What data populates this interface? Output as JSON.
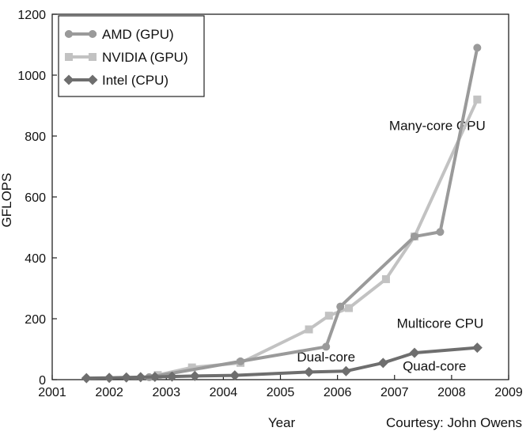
{
  "chart_data": {
    "type": "line",
    "xlabel": "Year",
    "ylabel": "GFLOPS",
    "xlim": [
      2001,
      2009
    ],
    "ylim": [
      0,
      1200
    ],
    "xticks": [
      "2001",
      "2002",
      "2003",
      "2004",
      "2005",
      "2006",
      "2007",
      "2008",
      "2009"
    ],
    "yticks": [
      "0",
      "200",
      "400",
      "600",
      "800",
      "1000",
      "1200"
    ],
    "grid": false,
    "legend_position": "top-left",
    "credit": "Courtesy: John Owens",
    "annotations": [
      {
        "text": "Many-core GPU",
        "x": 2007.75,
        "y": 820
      },
      {
        "text": "Multicore CPU",
        "x": 2007.8,
        "y": 170
      },
      {
        "text": "Dual-core",
        "x": 2005.8,
        "y": 60
      },
      {
        "text": "Quad-core",
        "x": 2007.7,
        "y": 30
      }
    ],
    "series": [
      {
        "name": "AMD (GPU)",
        "color": "#9a9a9a",
        "marker": "circle",
        "x": [
          2002.7,
          2004.3,
          2005.8,
          2006.05,
          2007.35,
          2007.8,
          2008.45
        ],
        "y": [
          8,
          60,
          108,
          240,
          470,
          485,
          1090
        ]
      },
      {
        "name": "NVIDIA (GPU)",
        "color": "#c2c2c2",
        "marker": "square",
        "x": [
          2002.85,
          2003.45,
          2004.3,
          2005.5,
          2005.85,
          2006.2,
          2006.85,
          2007.35,
          2008.45
        ],
        "y": [
          15,
          40,
          55,
          165,
          210,
          235,
          330,
          470,
          920
        ]
      },
      {
        "name": "Intel (CPU)",
        "color": "#6e6e6e",
        "marker": "diamond",
        "x": [
          2001.6,
          2002.0,
          2002.3,
          2002.55,
          2002.8,
          2003.1,
          2003.5,
          2004.2,
          2005.5,
          2006.15,
          2006.8,
          2007.35,
          2008.45
        ],
        "y": [
          5,
          6,
          7,
          8,
          9,
          10,
          12,
          14,
          25,
          28,
          55,
          88,
          105
        ]
      }
    ]
  }
}
